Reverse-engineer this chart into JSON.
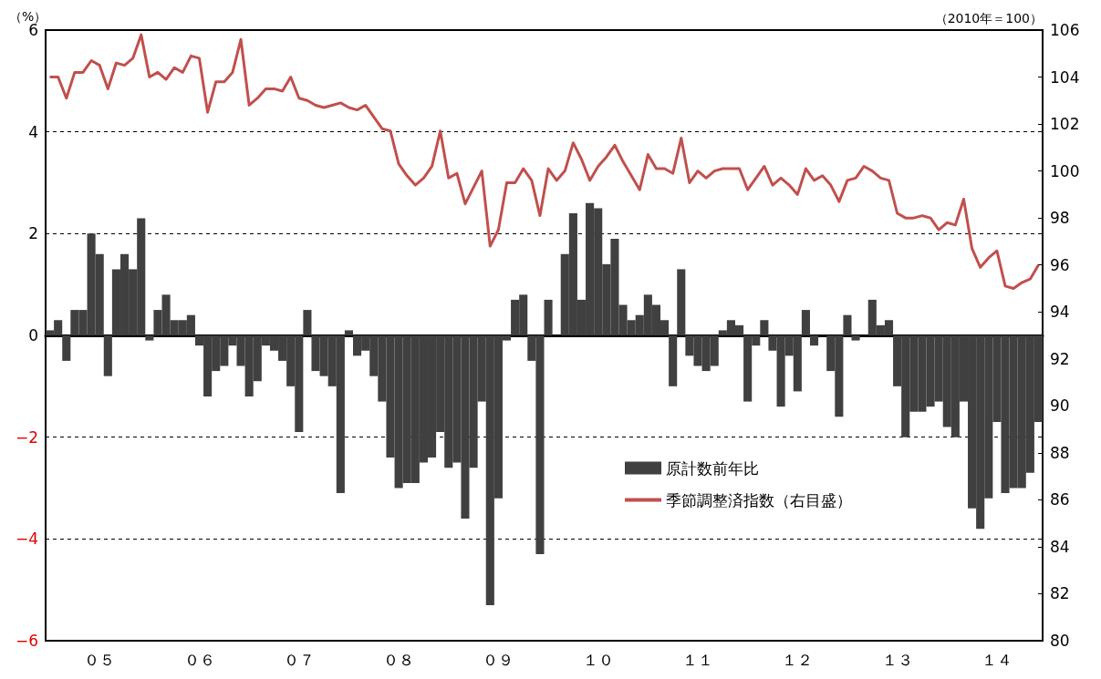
{
  "chart_data": {
    "type": "bar",
    "ylabel": "（%）",
    "y2label": "（2010年＝100）",
    "categories": [
      null,
      null,
      null,
      null,
      null,
      null,
      "０５",
      null,
      null,
      null,
      null,
      null,
      null,
      null,
      null,
      null,
      null,
      null,
      "０６",
      null,
      null,
      null,
      null,
      null,
      null,
      null,
      null,
      null,
      null,
      null,
      "０７",
      null,
      null,
      null,
      null,
      null,
      null,
      null,
      null,
      null,
      null,
      null,
      "０８",
      null,
      null,
      null,
      null,
      null,
      null,
      null,
      null,
      null,
      null,
      null,
      "０９",
      null,
      null,
      null,
      null,
      null,
      null,
      null,
      null,
      null,
      null,
      null,
      "１０",
      null,
      null,
      null,
      null,
      null,
      null,
      null,
      null,
      null,
      null,
      null,
      "１１",
      null,
      null,
      null,
      null,
      null,
      null,
      null,
      null,
      null,
      null,
      null,
      "１２",
      null,
      null,
      null,
      null,
      null,
      null,
      null,
      null,
      null,
      null,
      null,
      "１３",
      null,
      null,
      null,
      null,
      null,
      null,
      null,
      null,
      null,
      null,
      null,
      "１４",
      null,
      null,
      null,
      null,
      null
    ],
    "series": [
      {
        "name": "原計数前年比",
        "color": "#404040",
        "values": [
          0.1,
          0.3,
          -0.5,
          0.5,
          0.5,
          2.0,
          1.6,
          -0.8,
          1.3,
          1.6,
          1.3,
          2.3,
          -0.1,
          0.5,
          0.8,
          0.3,
          0.3,
          0.4,
          -0.2,
          -1.2,
          -0.7,
          -0.6,
          -0.2,
          -0.6,
          -1.2,
          -0.9,
          -0.2,
          -0.3,
          -0.5,
          -1.0,
          -1.9,
          0.5,
          -0.7,
          -0.8,
          -1.0,
          -3.1,
          0.1,
          -0.4,
          -0.3,
          -0.8,
          -1.3,
          -2.4,
          -3.0,
          -2.9,
          -2.9,
          -2.5,
          -2.4,
          -1.9,
          -2.6,
          -2.5,
          -3.6,
          -2.6,
          -1.3,
          -5.3,
          -3.2,
          -0.1,
          0.7,
          0.8,
          -0.5,
          -4.3,
          0.7,
          0.0,
          1.6,
          2.4,
          0.7,
          2.6,
          2.5,
          1.4,
          1.9,
          0.6,
          0.3,
          0.4,
          0.8,
          0.6,
          0.3,
          -1.0,
          1.3,
          -0.4,
          -0.6,
          -0.7,
          -0.6,
          0.1,
          0.3,
          0.2,
          -1.3,
          -0.2,
          0.3,
          -0.3,
          -1.4,
          -0.4,
          -1.1,
          0.5,
          -0.2,
          0.0,
          -0.7,
          -1.6,
          0.4,
          -0.1,
          0.0,
          0.7,
          0.2,
          0.3,
          -1.0,
          -2.0,
          -1.5,
          -1.5,
          -1.4,
          -1.3,
          -1.8,
          -2.0,
          -1.3,
          -3.4,
          -3.8,
          -3.2,
          -1.7,
          -3.1,
          -3.0,
          -3.0,
          -2.7,
          -1.7
        ]
      },
      {
        "name": "季節調整済指数（右目盛）",
        "type": "line",
        "axis": "y2",
        "color": "#c0504d",
        "values": [
          104.0,
          104.0,
          103.1,
          104.2,
          104.2,
          104.7,
          104.5,
          103.5,
          104.6,
          104.5,
          104.8,
          105.8,
          104.0,
          104.2,
          103.9,
          104.4,
          104.2,
          104.9,
          104.8,
          102.5,
          103.8,
          103.8,
          104.2,
          105.6,
          102.8,
          103.1,
          103.5,
          103.5,
          103.4,
          104.0,
          103.1,
          103.0,
          102.8,
          102.7,
          102.8,
          102.9,
          102.7,
          102.6,
          102.8,
          102.3,
          101.8,
          101.7,
          100.3,
          99.8,
          99.4,
          99.7,
          100.2,
          101.7,
          99.7,
          99.9,
          98.6,
          99.3,
          100.0,
          96.8,
          97.5,
          99.5,
          99.5,
          100.1,
          99.6,
          98.1,
          100.1,
          99.6,
          100.0,
          101.2,
          100.5,
          99.6,
          100.2,
          100.6,
          101.1,
          100.4,
          99.8,
          99.2,
          100.7,
          100.1,
          100.1,
          99.9,
          101.4,
          99.5,
          100.0,
          99.7,
          100.0,
          100.1,
          100.1,
          100.1,
          99.2,
          99.7,
          100.2,
          99.4,
          99.7,
          99.4,
          99.0,
          100.1,
          99.6,
          99.8,
          99.4,
          98.7,
          99.6,
          99.7,
          100.2,
          100.0,
          99.7,
          99.6,
          98.2,
          98.0,
          98.0,
          98.1,
          98.0,
          97.5,
          97.8,
          97.7,
          98.8,
          96.7,
          95.9,
          96.3,
          96.6,
          95.1,
          95.0,
          95.25,
          95.4,
          96.0
        ]
      }
    ],
    "ylim": [
      -6,
      6
    ],
    "yticks": [
      {
        "value": -6,
        "label": "−6"
      },
      {
        "value": -4,
        "label": "−4"
      },
      {
        "value": -2,
        "label": "−2"
      },
      0,
      2,
      4,
      6
    ],
    "y2lim": [
      80,
      106
    ],
    "y2ticks": [
      80,
      82,
      84,
      86,
      88,
      90,
      92,
      94,
      96,
      98,
      100,
      102,
      104,
      106
    ],
    "grid": "y",
    "legend": "bottom right",
    "marker": "none"
  }
}
